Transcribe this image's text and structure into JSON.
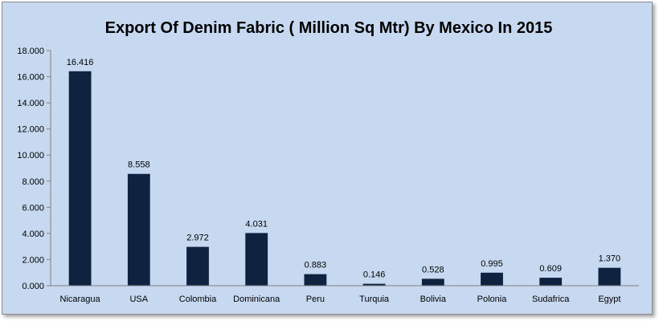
{
  "chart_data": {
    "type": "bar",
    "title": "Export  Of Denim Fabric ( Million Sq Mtr) By Mexico In 2015",
    "xlabel": "",
    "ylabel": "",
    "categories": [
      "Nicaragua",
      "USA",
      "Colombia",
      "Dominicana",
      "Peru",
      "Turquia",
      "Bolivia",
      "Polonia",
      "Sudafrica",
      "Egypt"
    ],
    "values": [
      16.416,
      8.558,
      2.972,
      4.031,
      0.883,
      0.146,
      0.528,
      0.995,
      0.609,
      1.37
    ],
    "value_labels": [
      "16.416",
      "8.558",
      "2.972",
      "4.031",
      "0.883",
      "0.146",
      "0.528",
      "0.995",
      "0.609",
      "1.370"
    ],
    "ylim": [
      0,
      18
    ],
    "yticks": [
      0,
      2,
      4,
      6,
      8,
      10,
      12,
      14,
      16,
      18
    ],
    "ytick_labels": [
      "0.000",
      "2.000",
      "4.000",
      "6.000",
      "8.000",
      "10.000",
      "12.000",
      "14.000",
      "16.000",
      "18.000"
    ],
    "grid": false,
    "legend": "none",
    "colors": {
      "bar": "#0f2340",
      "background": "#c6d9f1",
      "axis": "#808080"
    }
  }
}
